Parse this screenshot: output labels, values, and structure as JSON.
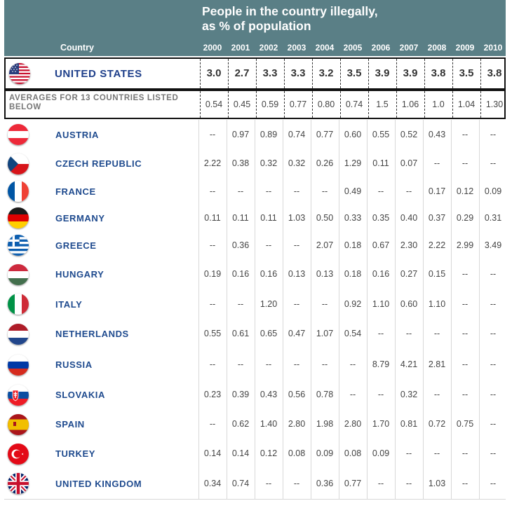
{
  "title": "People in the country illegally,\nas % of population",
  "country_header": "Country",
  "chart_data": {
    "type": "table",
    "title": "People in the country illegally, as % of population",
    "columns": [
      "2000",
      "2001",
      "2002",
      "2003",
      "2004",
      "2005",
      "2006",
      "2007",
      "2008",
      "2009",
      "2010"
    ],
    "highlight": {
      "country": "UNITED STATES",
      "flag": "us-flag-icon",
      "values": [
        "3.0",
        "2.7",
        "3.3",
        "3.3",
        "3.2",
        "3.5",
        "3.9",
        "3.9",
        "3.8",
        "3.5",
        "3.8"
      ]
    },
    "averages": {
      "label": "AVERAGES FOR 13 COUNTRIES LISTED BELOW",
      "values": [
        "0.54",
        "0.45",
        "0.59",
        "0.77",
        "0.80",
        "0.74",
        "1.5",
        "1.06",
        "1.0",
        "1.04",
        "1.30"
      ]
    },
    "rows": [
      {
        "country": "AUSTRIA",
        "flag": "austria-flag-icon",
        "values": [
          "--",
          "0.97",
          "0.89",
          "0.74",
          "0.77",
          "0.60",
          "0.55",
          "0.52",
          "0.43",
          "--",
          "--"
        ]
      },
      {
        "country": "CZECH REPUBLIC",
        "flag": "czech-flag-icon",
        "values": [
          "2.22",
          "0.38",
          "0.32",
          "0.32",
          "0.26",
          "1.29",
          "0.11",
          "0.07",
          "--",
          "--",
          "--"
        ]
      },
      {
        "country": "FRANCE",
        "flag": "france-flag-icon",
        "values": [
          "--",
          "--",
          "--",
          "--",
          "--",
          "0.49",
          "--",
          "--",
          "0.17",
          "0.12",
          "0.09"
        ]
      },
      {
        "country": "GERMANY",
        "flag": "germany-flag-icon",
        "values": [
          "0.11",
          "0.11",
          "0.11",
          "1.03",
          "0.50",
          "0.33",
          "0.35",
          "0.40",
          "0.37",
          "0.29",
          "0.31"
        ]
      },
      {
        "country": "GREECE",
        "flag": "greece-flag-icon",
        "values": [
          "--",
          "0.36",
          "--",
          "--",
          "2.07",
          "0.18",
          "0.67",
          "2.30",
          "2.22",
          "2.99",
          "3.49"
        ]
      },
      {
        "country": "HUNGARY",
        "flag": "hungary-flag-icon",
        "values": [
          "0.19",
          "0.16",
          "0.16",
          "0.13",
          "0.13",
          "0.18",
          "0.16",
          "0.27",
          "0.15",
          "--",
          "--"
        ]
      },
      {
        "country": "ITALY",
        "flag": "italy-flag-icon",
        "values": [
          "--",
          "--",
          "1.20",
          "--",
          "--",
          "0.92",
          "1.10",
          "0.60",
          "1.10",
          "--",
          "--"
        ]
      },
      {
        "country": "NETHERLANDS",
        "flag": "netherlands-flag-icon",
        "values": [
          "0.55",
          "0.61",
          "0.65",
          "0.47",
          "1.07",
          "0.54",
          "--",
          "--",
          "--",
          "--",
          "--"
        ]
      },
      {
        "country": "RUSSIA",
        "flag": "russia-flag-icon",
        "values": [
          "--",
          "--",
          "--",
          "--",
          "--",
          "--",
          "8.79",
          "4.21",
          "2.81",
          "--",
          "--"
        ]
      },
      {
        "country": "SLOVAKIA",
        "flag": "slovakia-flag-icon",
        "values": [
          "0.23",
          "0.39",
          "0.43",
          "0.56",
          "0.78",
          "--",
          "--",
          "0.32",
          "--",
          "--",
          "--"
        ]
      },
      {
        "country": "SPAIN",
        "flag": "spain-flag-icon",
        "values": [
          "--",
          "0.62",
          "1.40",
          "2.80",
          "1.98",
          "2.80",
          "1.70",
          "0.81",
          "0.72",
          "0.75",
          "--"
        ]
      },
      {
        "country": "TURKEY",
        "flag": "turkey-flag-icon",
        "values": [
          "0.14",
          "0.14",
          "0.12",
          "0.08",
          "0.09",
          "0.08",
          "0.09",
          "--",
          "--",
          "--",
          "--"
        ]
      },
      {
        "country": "UNITED KINGDOM",
        "flag": "uk-flag-icon",
        "values": [
          "0.34",
          "0.74",
          "--",
          "--",
          "0.36",
          "0.77",
          "--",
          "--",
          "1.03",
          "--",
          "--"
        ]
      }
    ],
    "colors": {
      "header_bg": "#5a7f86",
      "country_name": "#1e4a8e",
      "cell_text": "#444444"
    }
  }
}
